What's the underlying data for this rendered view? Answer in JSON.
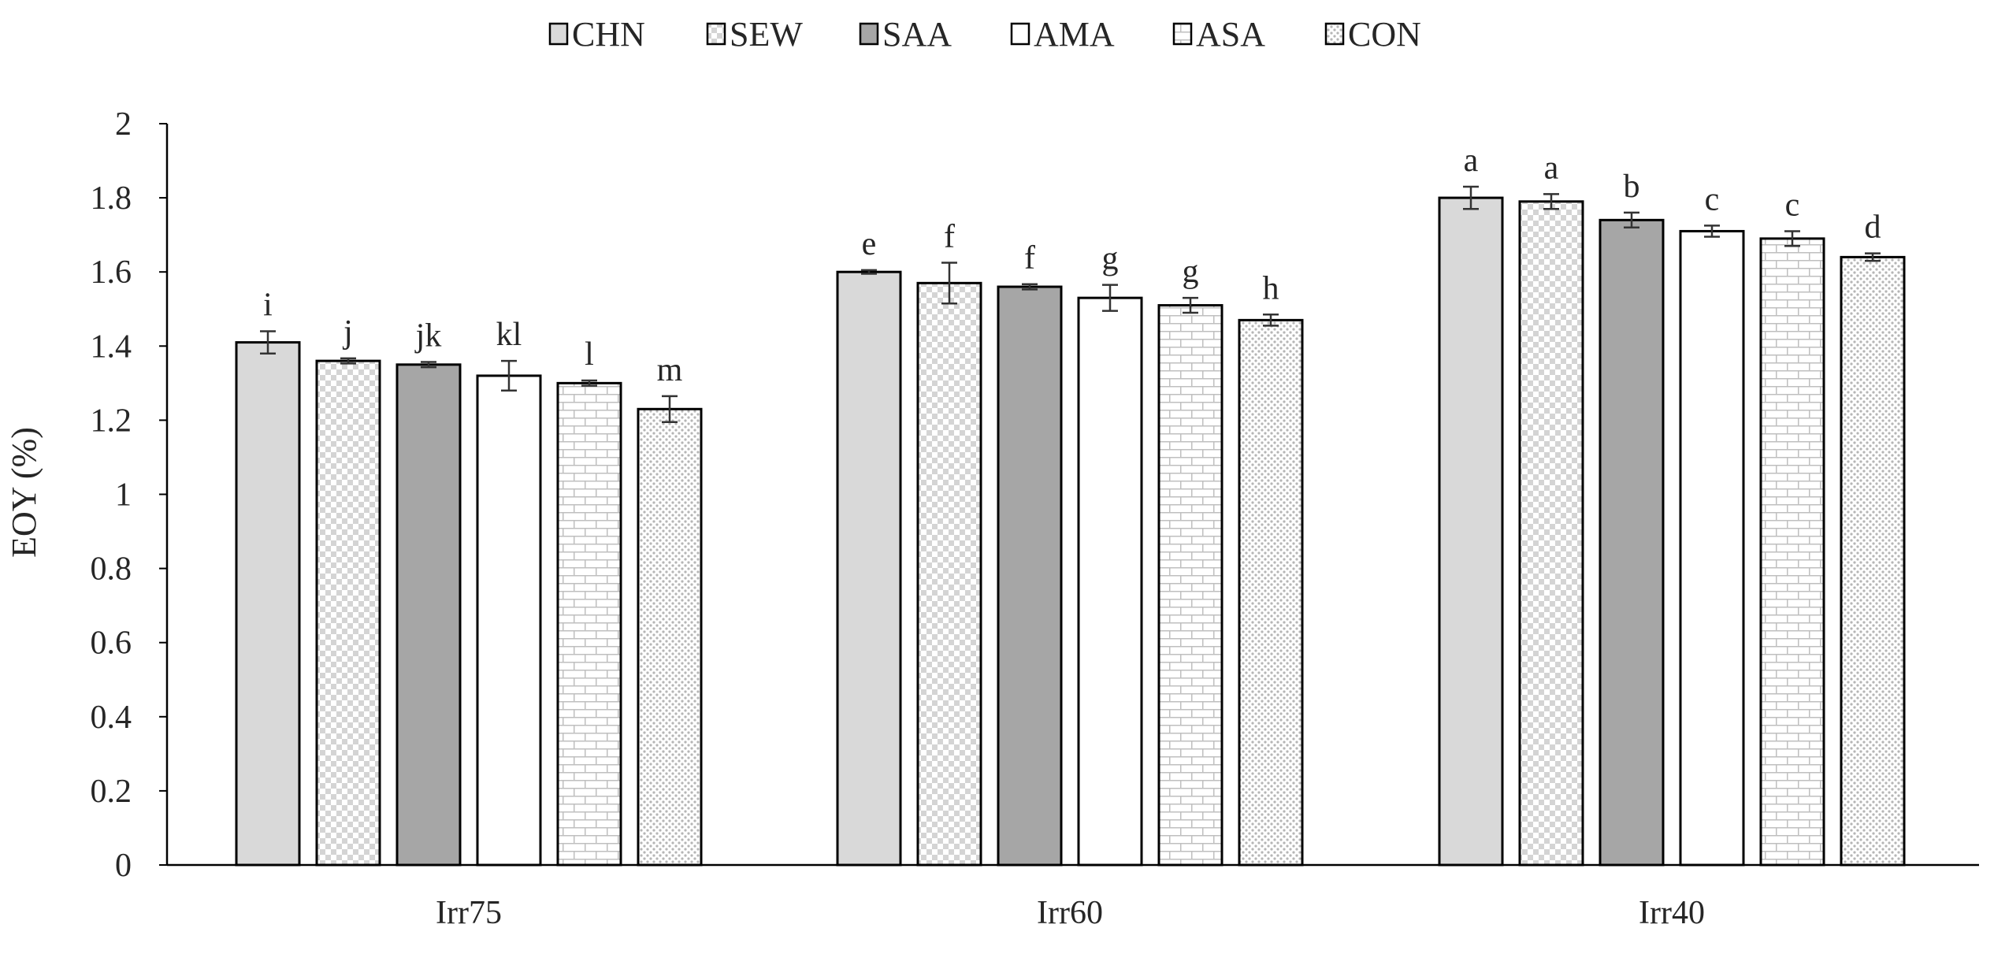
{
  "chart_data": {
    "type": "bar",
    "ylabel": "EOY (%)",
    "xlabel": "",
    "ylim": [
      0,
      2
    ],
    "yticks": [
      0,
      0.2,
      0.4,
      0.6,
      0.8,
      1,
      1.2,
      1.4,
      1.6,
      1.8,
      2
    ],
    "ytick_labels": [
      "0",
      "0.2",
      "0.4",
      "0.6",
      "0.8",
      "1",
      "1.2",
      "1.4",
      "1.6",
      "1.8",
      "2"
    ],
    "grid": false,
    "legend_position": "top",
    "categories": [
      "Irr75",
      "Irr60",
      "Irr40"
    ],
    "series": [
      {
        "name": "CHN",
        "pattern": "solid-light",
        "values": [
          1.41,
          1.6,
          1.8
        ],
        "errors": [
          0.03,
          0.005,
          0.03
        ],
        "labels": [
          "i",
          "e",
          "a"
        ]
      },
      {
        "name": "SEW",
        "pattern": "checker",
        "values": [
          1.36,
          1.57,
          1.79
        ],
        "errors": [
          0.007,
          0.055,
          0.02
        ],
        "labels": [
          "j",
          "f",
          "a"
        ]
      },
      {
        "name": "SAA",
        "pattern": "solid-dark",
        "values": [
          1.35,
          1.56,
          1.74
        ],
        "errors": [
          0.007,
          0.007,
          0.02
        ],
        "labels": [
          "jk",
          "f",
          "b"
        ]
      },
      {
        "name": "AMA",
        "pattern": "white",
        "values": [
          1.32,
          1.53,
          1.71
        ],
        "errors": [
          0.04,
          0.035,
          0.015
        ],
        "labels": [
          "kl",
          "g",
          "c"
        ]
      },
      {
        "name": "ASA",
        "pattern": "brick",
        "values": [
          1.3,
          1.51,
          1.69
        ],
        "errors": [
          0.007,
          0.02,
          0.02
        ],
        "labels": [
          "l",
          "g",
          "c"
        ]
      },
      {
        "name": "CON",
        "pattern": "dots",
        "values": [
          1.23,
          1.47,
          1.64
        ],
        "errors": [
          0.035,
          0.015,
          0.01
        ],
        "labels": [
          "m",
          "h",
          "d"
        ]
      }
    ],
    "colors": {
      "solid_light": "#d9d9d9",
      "solid_dark": "#a6a6a6",
      "outline": "#000000",
      "pattern_ink": "#bfbfbf",
      "text": "#262626"
    }
  }
}
